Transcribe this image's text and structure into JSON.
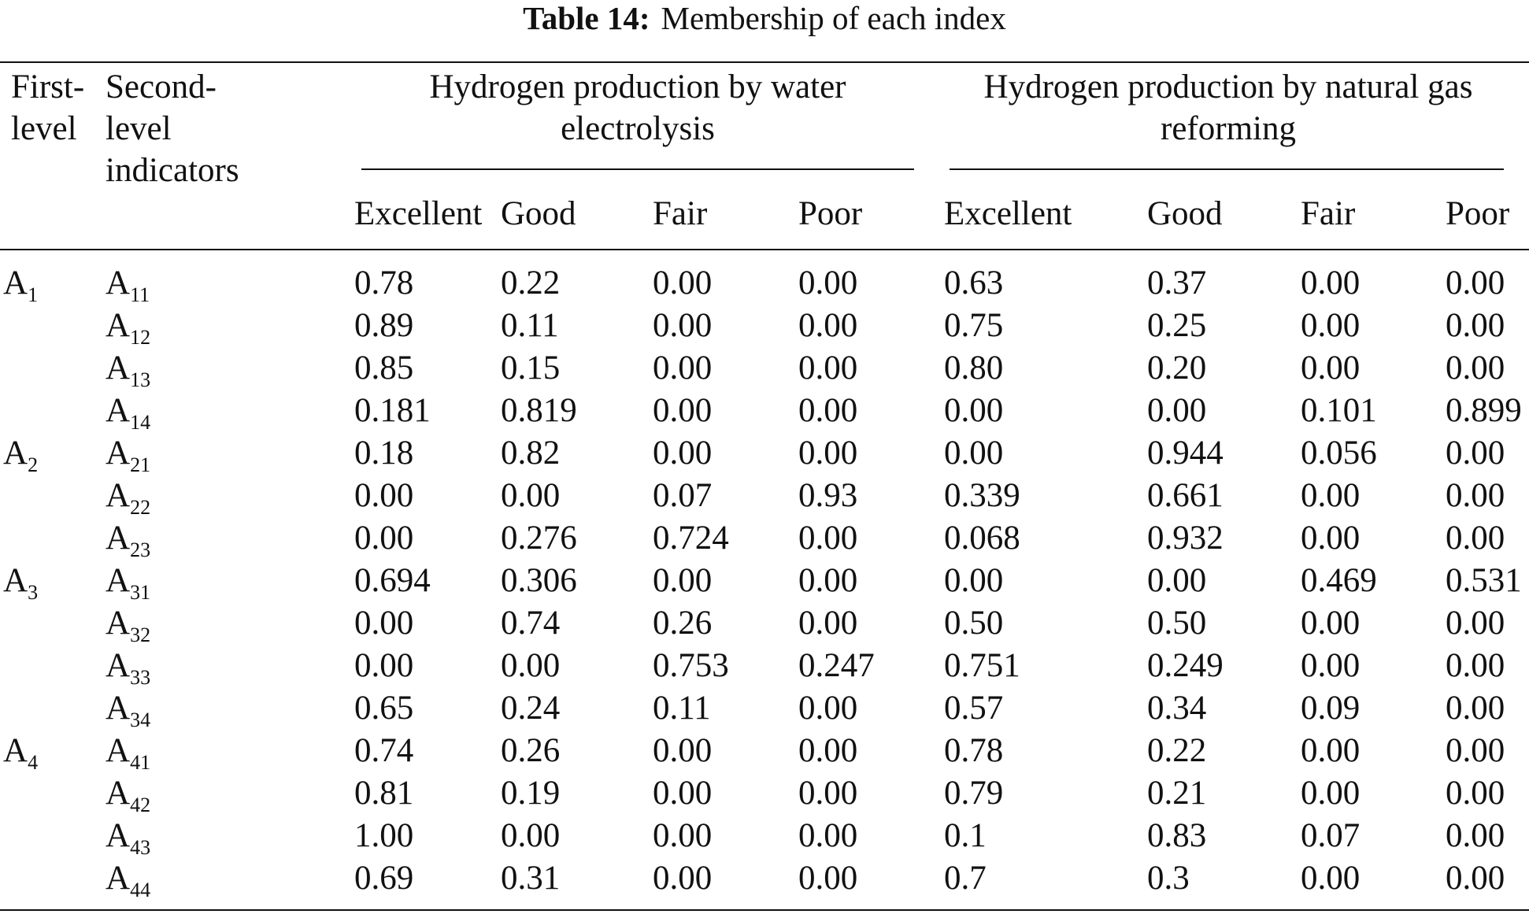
{
  "caption": {
    "label": "Table 14:",
    "title": "Membership of each index"
  },
  "header": {
    "first_level": [
      "First-",
      "level"
    ],
    "second_level": [
      "Second-",
      "level",
      "indicators"
    ],
    "group_water": [
      "Hydrogen production by water",
      "electrolysis"
    ],
    "group_gas": [
      "Hydrogen production by natural gas",
      "reforming"
    ],
    "grades": [
      "Excellent",
      "Good",
      "Fair",
      "Poor",
      "Excellent",
      "Good",
      "Fair",
      "Poor"
    ]
  },
  "rows": [
    {
      "first": {
        "base": "A",
        "sub": "1"
      },
      "second": {
        "base": "A",
        "sub": "11"
      },
      "values": [
        "0.78",
        "0.22",
        "0.00",
        "0.00",
        "0.63",
        "0.37",
        "0.00",
        "0.00"
      ]
    },
    {
      "first": null,
      "second": {
        "base": "A",
        "sub": "12"
      },
      "values": [
        "0.89",
        "0.11",
        "0.00",
        "0.00",
        "0.75",
        "0.25",
        "0.00",
        "0.00"
      ]
    },
    {
      "first": null,
      "second": {
        "base": "A",
        "sub": "13"
      },
      "values": [
        "0.85",
        "0.15",
        "0.00",
        "0.00",
        "0.80",
        "0.20",
        "0.00",
        "0.00"
      ]
    },
    {
      "first": null,
      "second": {
        "base": "A",
        "sub": "14"
      },
      "values": [
        "0.181",
        "0.819",
        "0.00",
        "0.00",
        "0.00",
        "0.00",
        "0.101",
        "0.899"
      ]
    },
    {
      "first": {
        "base": "A",
        "sub": "2"
      },
      "second": {
        "base": "A",
        "sub": "21"
      },
      "values": [
        "0.18",
        "0.82",
        "0.00",
        "0.00",
        "0.00",
        "0.944",
        "0.056",
        "0.00"
      ]
    },
    {
      "first": null,
      "second": {
        "base": "A",
        "sub": "22"
      },
      "values": [
        "0.00",
        "0.00",
        "0.07",
        "0.93",
        "0.339",
        "0.661",
        "0.00",
        "0.00"
      ]
    },
    {
      "first": null,
      "second": {
        "base": "A",
        "sub": "23"
      },
      "values": [
        "0.00",
        "0.276",
        "0.724",
        "0.00",
        "0.068",
        "0.932",
        "0.00",
        "0.00"
      ]
    },
    {
      "first": {
        "base": "A",
        "sub": "3"
      },
      "second": {
        "base": "A",
        "sub": "31"
      },
      "values": [
        "0.694",
        "0.306",
        "0.00",
        "0.00",
        "0.00",
        "0.00",
        "0.469",
        "0.531"
      ]
    },
    {
      "first": null,
      "second": {
        "base": "A",
        "sub": "32"
      },
      "values": [
        "0.00",
        "0.74",
        "0.26",
        "0.00",
        "0.50",
        "0.50",
        "0.00",
        "0.00"
      ]
    },
    {
      "first": null,
      "second": {
        "base": "A",
        "sub": "33"
      },
      "values": [
        "0.00",
        "0.00",
        "0.753",
        "0.247",
        "0.751",
        "0.249",
        "0.00",
        "0.00"
      ]
    },
    {
      "first": null,
      "second": {
        "base": "A",
        "sub": "34"
      },
      "values": [
        "0.65",
        "0.24",
        "0.11",
        "0.00",
        "0.57",
        "0.34",
        "0.09",
        "0.00"
      ]
    },
    {
      "first": {
        "base": "A",
        "sub": "4"
      },
      "second": {
        "base": "A",
        "sub": "41"
      },
      "values": [
        "0.74",
        "0.26",
        "0.00",
        "0.00",
        "0.78",
        "0.22",
        "0.00",
        "0.00"
      ]
    },
    {
      "first": null,
      "second": {
        "base": "A",
        "sub": "42"
      },
      "values": [
        "0.81",
        "0.19",
        "0.00",
        "0.00",
        "0.79",
        "0.21",
        "0.00",
        "0.00"
      ]
    },
    {
      "first": null,
      "second": {
        "base": "A",
        "sub": "43"
      },
      "values": [
        "1.00",
        "0.00",
        "0.00",
        "0.00",
        "0.1",
        "0.83",
        "0.07",
        "0.00"
      ]
    },
    {
      "first": null,
      "second": {
        "base": "A",
        "sub": "44"
      },
      "values": [
        "0.69",
        "0.31",
        "0.00",
        "0.00",
        "0.7",
        "0.3",
        "0.00",
        "0.00"
      ]
    }
  ]
}
